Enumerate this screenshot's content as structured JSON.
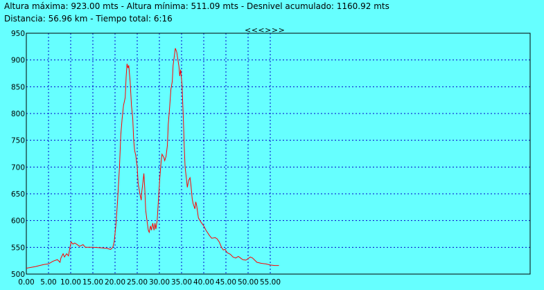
{
  "header": {
    "line1": "Altura máxima: 923.00 mts - Altura mínima: 511.09 mts - Desnivel acumulado: 1160.92 mts",
    "line2": "Distancia: 56.96 km - Tiempo total: 6:16",
    "nav": "<<<>>>"
  },
  "chart_data": {
    "type": "line",
    "title": "",
    "xlabel": "",
    "ylabel": "",
    "xlim": [
      0,
      57
    ],
    "ylim": [
      500,
      950
    ],
    "grid": true,
    "x_ticks": [
      "0.00",
      "5.00",
      "10.00",
      "15.00",
      "20.00",
      "25.00",
      "30.00",
      "35.00",
      "40.00",
      "45.00",
      "50.00",
      "55.00"
    ],
    "y_ticks": [
      "500",
      "550",
      "600",
      "650",
      "700",
      "750",
      "800",
      "850",
      "900",
      "950"
    ],
    "colors": {
      "line": "#ff0000",
      "grid": "#0000cc",
      "background": "#66ffff"
    },
    "series": [
      {
        "values": [
          [
            0,
            511
          ],
          [
            2,
            514
          ],
          [
            3,
            516
          ],
          [
            4,
            518
          ],
          [
            5,
            519
          ],
          [
            6,
            524
          ],
          [
            7,
            527
          ],
          [
            7.6,
            522
          ],
          [
            7.8,
            530
          ],
          [
            8.3,
            538
          ],
          [
            8.6,
            532
          ],
          [
            9.1,
            538
          ],
          [
            9.5,
            534
          ],
          [
            9.8,
            548
          ],
          [
            10.1,
            560
          ],
          [
            10.5,
            556
          ],
          [
            10.9,
            558
          ],
          [
            11.3,
            556
          ],
          [
            12,
            552
          ],
          [
            12.8,
            555
          ],
          [
            13.3,
            550
          ],
          [
            15,
            550
          ],
          [
            17,
            549
          ],
          [
            18.2,
            548
          ],
          [
            19,
            546
          ],
          [
            19.5,
            550
          ],
          [
            19.8,
            560
          ],
          [
            20.2,
            592
          ],
          [
            20.6,
            640
          ],
          [
            21,
            700
          ],
          [
            21.3,
            760
          ],
          [
            21.6,
            790
          ],
          [
            21.9,
            815
          ],
          [
            22.1,
            822
          ],
          [
            22.3,
            830
          ],
          [
            22.5,
            868
          ],
          [
            22.7,
            893
          ],
          [
            22.9,
            885
          ],
          [
            23.1,
            890
          ],
          [
            23.4,
            860
          ],
          [
            23.7,
            815
          ],
          [
            24,
            790
          ],
          [
            24.2,
            750
          ],
          [
            24.4,
            732
          ],
          [
            24.7,
            720
          ],
          [
            25,
            700
          ],
          [
            25.2,
            670
          ],
          [
            25.6,
            650
          ],
          [
            25.9,
            638
          ],
          [
            26,
            652
          ],
          [
            26.3,
            672
          ],
          [
            26.5,
            688
          ],
          [
            26.7,
            660
          ],
          [
            26.9,
            620
          ],
          [
            27.2,
            600
          ],
          [
            27.5,
            582
          ],
          [
            27.7,
            578
          ],
          [
            28,
            590
          ],
          [
            28.2,
            582
          ],
          [
            28.5,
            595
          ],
          [
            28.8,
            582
          ],
          [
            29,
            595
          ],
          [
            29.2,
            584
          ],
          [
            29.5,
            600
          ],
          [
            29.8,
            640
          ],
          [
            30.1,
            680
          ],
          [
            30.4,
            712
          ],
          [
            30.6,
            724
          ],
          [
            31,
            718
          ],
          [
            31.2,
            712
          ],
          [
            31.5,
            720
          ],
          [
            31.8,
            740
          ],
          [
            32,
            780
          ],
          [
            32.3,
            810
          ],
          [
            32.6,
            845
          ],
          [
            32.9,
            860
          ],
          [
            33.1,
            890
          ],
          [
            33.4,
            910
          ],
          [
            33.6,
            922
          ],
          [
            33.9,
            915
          ],
          [
            34.1,
            905
          ],
          [
            34.4,
            888
          ],
          [
            34.6,
            870
          ],
          [
            34.8,
            882
          ],
          [
            35.1,
            855
          ],
          [
            35.4,
            790
          ],
          [
            35.6,
            740
          ],
          [
            35.8,
            700
          ],
          [
            36.1,
            678
          ],
          [
            36.3,
            662
          ],
          [
            36.6,
            675
          ],
          [
            36.9,
            680
          ],
          [
            37.1,
            668
          ],
          [
            37.4,
            640
          ],
          [
            37.6,
            632
          ],
          [
            38,
            622
          ],
          [
            38.2,
            635
          ],
          [
            38.4,
            628
          ],
          [
            38.8,
            605
          ],
          [
            39.3,
            598
          ],
          [
            40,
            590
          ],
          [
            40.5,
            582
          ],
          [
            41.3,
            572
          ],
          [
            41.8,
            567
          ],
          [
            42.6,
            568
          ],
          [
            43,
            566
          ],
          [
            43.5,
            560
          ],
          [
            44,
            550
          ],
          [
            44.4,
            545
          ],
          [
            44.8,
            546
          ],
          [
            45.3,
            540
          ],
          [
            46,
            537
          ],
          [
            46.6,
            532
          ],
          [
            47.2,
            530
          ],
          [
            47.8,
            533
          ],
          [
            48.3,
            530
          ],
          [
            48.8,
            527
          ],
          [
            49.5,
            526
          ],
          [
            50,
            529
          ],
          [
            50.5,
            532
          ],
          [
            51,
            530
          ],
          [
            51.5,
            526
          ],
          [
            52,
            522
          ],
          [
            53,
            520
          ],
          [
            54,
            519
          ],
          [
            55,
            517
          ],
          [
            56,
            516
          ],
          [
            56.96,
            516
          ]
        ]
      }
    ]
  }
}
